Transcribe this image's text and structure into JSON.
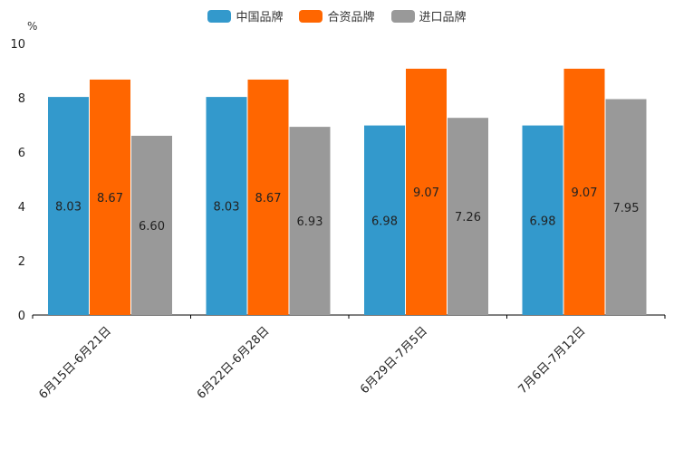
{
  "chart_data": {
    "type": "bar",
    "title": "",
    "xlabel": "",
    "ylabel": "%",
    "ylim": [
      0,
      10
    ],
    "yticks": [
      "0",
      "2",
      "4",
      "6",
      "8",
      "10"
    ],
    "grid": false,
    "legend_position": "top-center",
    "categories": [
      "6月15日-6月21日",
      "6月22日-6月28日",
      "6月29日-7月5日",
      "7月6日-7月12日"
    ],
    "series": [
      {
        "name": "中国品牌",
        "color": "#3399cc",
        "values": [
          8.03,
          8.03,
          6.98,
          6.98
        ],
        "labels": [
          "8.03",
          "8.03",
          "6.98",
          "6.98"
        ]
      },
      {
        "name": "合资品牌",
        "color": "#ff6600",
        "values": [
          8.67,
          8.67,
          9.07,
          9.07
        ],
        "labels": [
          "8.67",
          "8.67",
          "9.07",
          "9.07"
        ]
      },
      {
        "name": "进口品牌",
        "color": "#999999",
        "values": [
          6.6,
          6.93,
          7.26,
          7.95
        ],
        "labels": [
          "6.60",
          "6.93",
          "7.26",
          "7.95"
        ]
      }
    ]
  }
}
